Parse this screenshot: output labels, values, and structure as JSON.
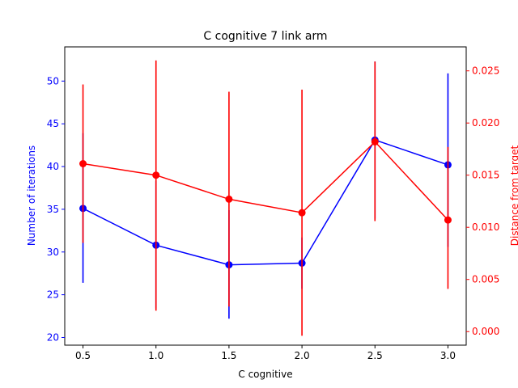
{
  "chart_data": {
    "type": "line",
    "title": "C cognitive 7 link arm",
    "xlabel": "C cognitive",
    "ylabel_left": "Number of iterations",
    "ylabel_right": "Distance from target",
    "x": [
      0.5,
      1.0,
      1.5,
      2.0,
      2.5,
      3.0
    ],
    "xlim": [
      0.375,
      3.125
    ],
    "xticks": [
      "0.5",
      "1.0",
      "1.5",
      "2.0",
      "2.5",
      "3.0"
    ],
    "ylim_left": [
      19.1,
      54.0
    ],
    "yticks_left": [
      "20",
      "25",
      "30",
      "35",
      "40",
      "45",
      "50"
    ],
    "ylim_right": [
      -0.0013,
      0.0273
    ],
    "yticks_right": [
      "0.000",
      "0.005",
      "0.010",
      "0.015",
      "0.020",
      "0.025"
    ],
    "series": [
      {
        "name": "Number of iterations",
        "axis": "left",
        "color": "#0000ff",
        "values": [
          35.1,
          30.8,
          28.5,
          28.7,
          43.1,
          40.2
        ],
        "lower": [
          26.4,
          23.4,
          22.2,
          25.7,
          33.9,
          30.6
        ],
        "upper": [
          43.9,
          38.3,
          34.9,
          31.7,
          52.3,
          50.9
        ]
      },
      {
        "name": "Distance from target",
        "axis": "right",
        "color": "#ff0000",
        "values": [
          0.0161,
          0.015,
          0.0127,
          0.0114,
          0.0182,
          0.0107
        ],
        "lower": [
          0.0085,
          0.002,
          0.0024,
          -0.0004,
          0.0106,
          0.0041
        ],
        "upper": [
          0.0237,
          0.026,
          0.023,
          0.0232,
          0.0259,
          0.0177
        ]
      }
    ]
  }
}
